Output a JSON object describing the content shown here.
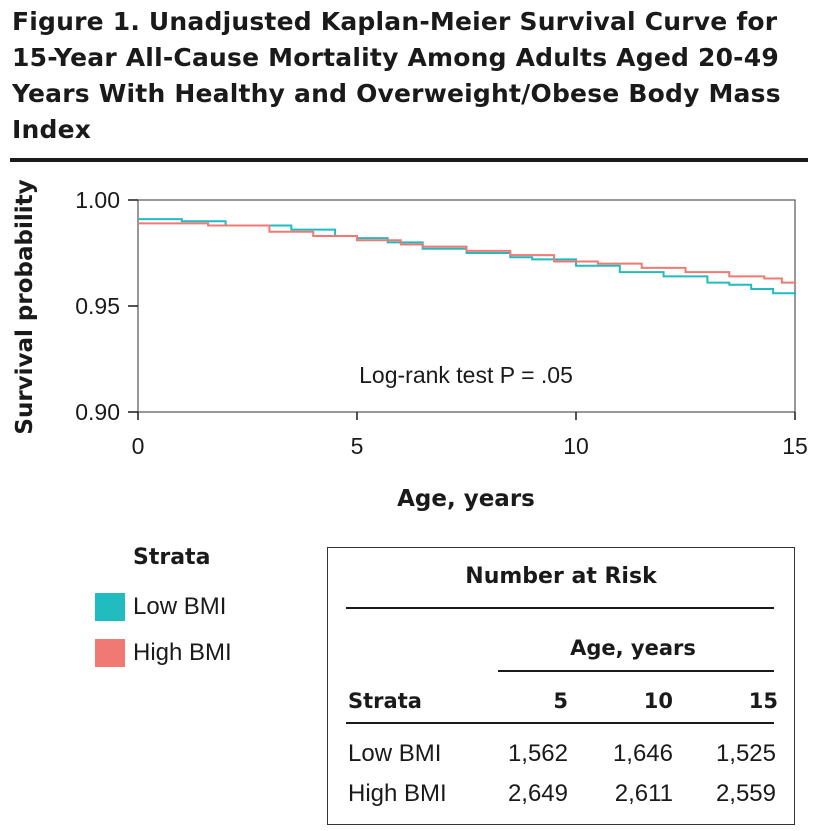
{
  "figure": {
    "title": "Figure 1. Unadjusted Kaplan-Meier Survival Curve for 15-Year All-Cause Mortality Among Adults Aged 20-49 Years With Healthy and Overweight/Obese Body Mass Index"
  },
  "colors": {
    "low": "#20bcc0",
    "high": "#f07a73",
    "axis": "#1a1a1a"
  },
  "chart_data": {
    "type": "line",
    "title": "",
    "xlabel": "Age, years",
    "ylabel": "Survival probability",
    "xlim": [
      0,
      15
    ],
    "ylim": [
      0.9,
      1.0
    ],
    "xticks": [
      0,
      5,
      10,
      15
    ],
    "yticks": [
      0.9,
      0.95,
      1.0
    ],
    "xtick_labels": [
      "0",
      "5",
      "10",
      "15"
    ],
    "ytick_labels": [
      "0.90",
      "0.95",
      "1.00"
    ],
    "annotation": "Log-rank test P = .05",
    "grid": false,
    "series": [
      {
        "name": "Low BMI",
        "x": [
          0,
          1.0,
          2.0,
          3.5,
          4.5,
          5.0,
          5.7,
          6.5,
          7.5,
          8.5,
          9.0,
          10.0,
          11.0,
          12.0,
          13.0,
          13.5,
          14.0,
          14.5,
          15.0
        ],
        "y": [
          0.991,
          0.99,
          0.988,
          0.986,
          0.983,
          0.982,
          0.98,
          0.977,
          0.975,
          0.973,
          0.972,
          0.969,
          0.966,
          0.964,
          0.961,
          0.96,
          0.958,
          0.956,
          0.955
        ]
      },
      {
        "name": "High BMI",
        "x": [
          0,
          1.0,
          1.6,
          3.0,
          4.0,
          5.0,
          6.0,
          6.5,
          7.5,
          8.5,
          9.5,
          10.5,
          11.5,
          12.5,
          13.5,
          14.3,
          14.7,
          15.0
        ],
        "y": [
          0.989,
          0.989,
          0.988,
          0.985,
          0.983,
          0.981,
          0.979,
          0.978,
          0.976,
          0.974,
          0.971,
          0.97,
          0.968,
          0.966,
          0.964,
          0.963,
          0.961,
          0.96
        ]
      }
    ]
  },
  "legend": {
    "title": "Strata",
    "items": [
      {
        "label": "Low BMI"
      },
      {
        "label": "High BMI"
      }
    ]
  },
  "risk_table": {
    "title": "Number at Risk",
    "age_header": "Age, years",
    "strata_header": "Strata",
    "columns": [
      "5",
      "10",
      "15"
    ],
    "rows": [
      {
        "label": "Low BMI",
        "values": [
          "1,562",
          "1,646",
          "1,525"
        ]
      },
      {
        "label": "High BMI",
        "values": [
          "2,649",
          "2,611",
          "2,559"
        ]
      }
    ]
  }
}
